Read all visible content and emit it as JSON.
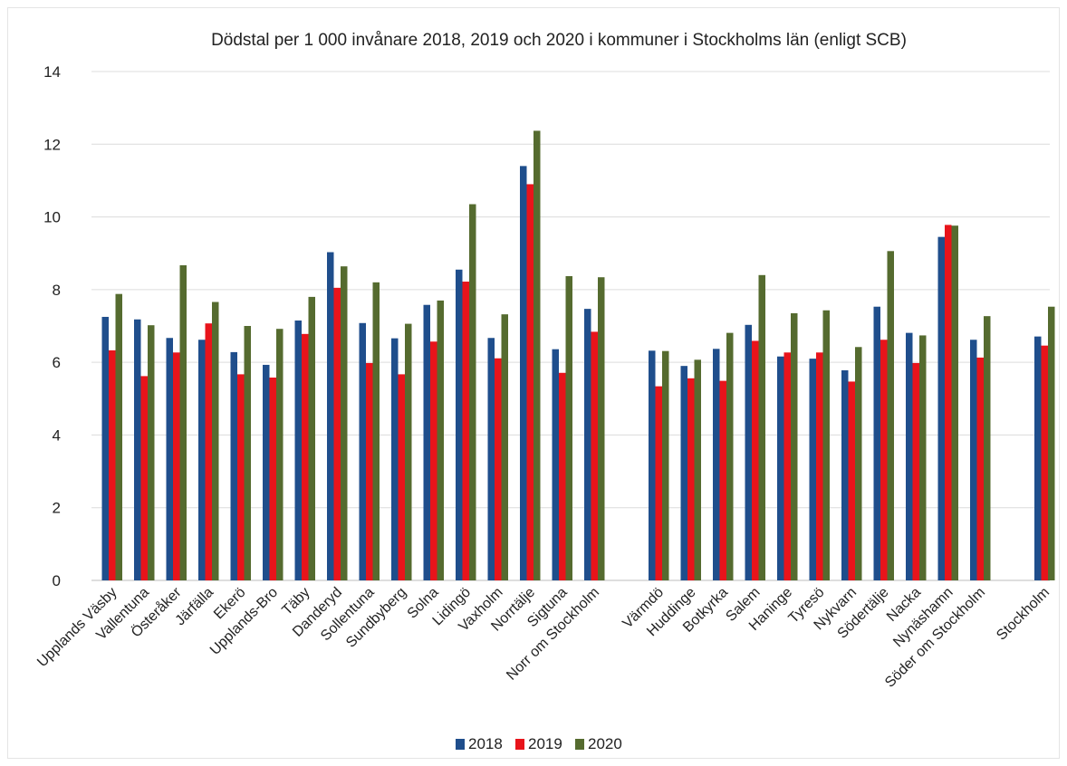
{
  "chart_data": {
    "type": "bar",
    "title": "Dödstal per 1 000 invånare 2018, 2019 och 2020 i kommuner i Stockholms län (enligt SCB)",
    "xlabel": "",
    "ylabel": "",
    "ylim": [
      0,
      14
    ],
    "yticks": [
      "0",
      "2",
      "4",
      "6",
      "8",
      "10",
      "12",
      "14"
    ],
    "grid": true,
    "legend_position": "bottom",
    "categories": [
      "Upplands Väsby",
      "Vallentuna",
      "Österåker",
      "Järfälla",
      "Ekerö",
      "Upplands-Bro",
      "Täby",
      "Danderyd",
      "Sollentuna",
      "Sundbyberg",
      "Solna",
      "Lidingö",
      "Vaxholm",
      "Norrtälje",
      "Sigtuna",
      "Norr om Stockholm",
      "Värmdö",
      "Huddinge",
      "Botkyrka",
      "Salem",
      "Haninge",
      "Tyresö",
      "Nykvarn",
      "Södertälje",
      "Nacka",
      "Nynäshamn",
      "Söder om Stockholm",
      "Stockholm"
    ],
    "category_groups": [
      16,
      11,
      1
    ],
    "series": [
      {
        "name": "2018",
        "color": "#1f4e8c",
        "values": [
          7.25,
          7.18,
          6.67,
          6.62,
          6.28,
          5.93,
          7.15,
          9.03,
          7.08,
          6.66,
          7.58,
          8.55,
          6.67,
          11.4,
          6.36,
          7.47,
          6.32,
          5.9,
          6.37,
          7.03,
          6.16,
          6.1,
          5.78,
          7.53,
          6.81,
          9.45,
          6.62,
          6.71
        ]
      },
      {
        "name": "2019",
        "color": "#e8141b",
        "values": [
          6.33,
          5.62,
          6.27,
          7.07,
          5.67,
          5.58,
          6.78,
          8.05,
          5.98,
          5.67,
          6.57,
          8.22,
          6.11,
          10.9,
          5.71,
          6.84,
          5.34,
          5.56,
          5.49,
          6.59,
          6.27,
          6.27,
          5.47,
          6.62,
          5.98,
          9.78,
          6.13,
          6.46
        ]
      },
      {
        "name": "2020",
        "color": "#556b2f",
        "values": [
          7.88,
          7.02,
          8.67,
          7.66,
          7.0,
          6.92,
          7.8,
          8.64,
          8.2,
          7.06,
          7.7,
          10.35,
          7.32,
          12.37,
          8.37,
          8.34,
          6.31,
          6.07,
          6.81,
          8.4,
          7.35,
          7.43,
          6.42,
          9.06,
          6.74,
          9.76,
          7.27,
          7.53
        ]
      }
    ]
  }
}
